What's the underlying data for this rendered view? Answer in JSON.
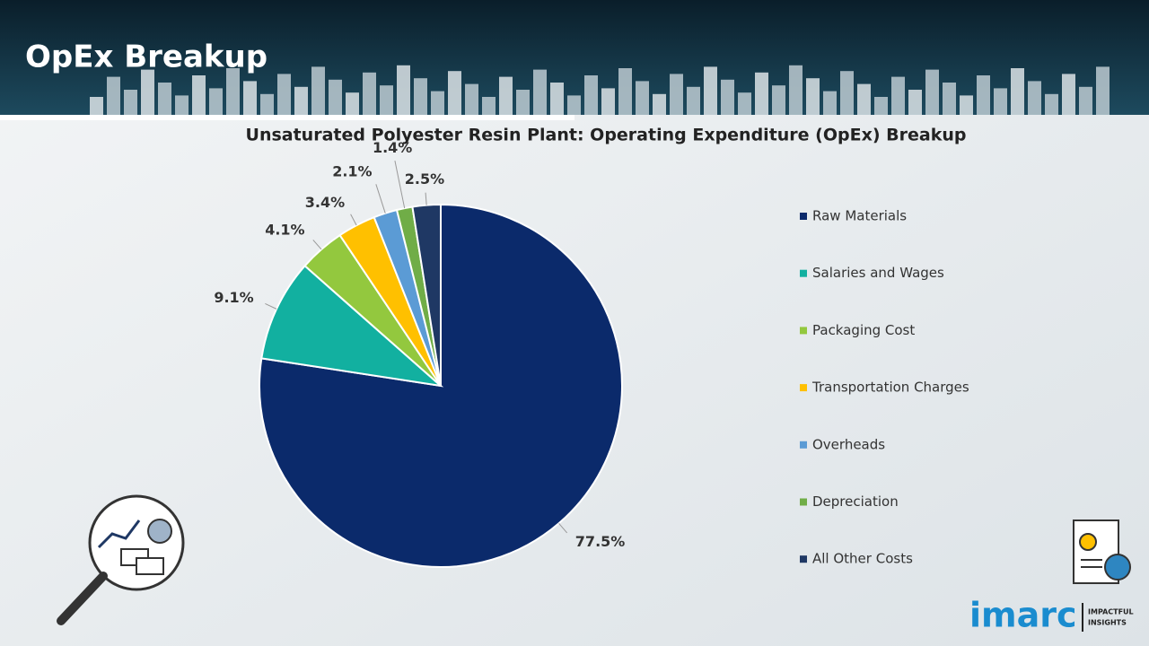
{
  "header": {
    "title": "OpEx Breakup"
  },
  "chart_data": {
    "type": "pie",
    "title": "Unsaturated Polyester Resin Plant: Operating Expenditure (OpEx) Breakup",
    "categories": [
      "Raw Materials",
      "Salaries and Wages",
      "Packaging Cost",
      "Transportation Charges",
      "Overheads",
      "Depreciation",
      "All Other Costs"
    ],
    "values": [
      77.5,
      9.1,
      4.1,
      3.4,
      2.1,
      1.4,
      2.5
    ],
    "value_labels": [
      "77.5%",
      "9.1%",
      "4.1%",
      "3.4%",
      "2.1%",
      "1.4%",
      "2.5%"
    ],
    "colors": [
      "#0b2a6b",
      "#12b0a0",
      "#93c83e",
      "#ffc000",
      "#5b9bd5",
      "#70ad47",
      "#1f3864"
    ],
    "legend": "right"
  },
  "logo": {
    "name": "imarc",
    "tagline": [
      "IMPACTFUL",
      "INSIGHTS"
    ]
  }
}
